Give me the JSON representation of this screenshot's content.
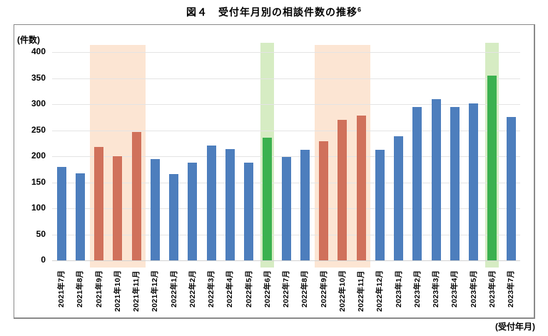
{
  "chart_data": {
    "type": "bar",
    "title": "図４　受付年月別の相談件数の推移",
    "footnote_marker": "6",
    "ylabel": "(件数)",
    "xlabel": "(受付年月)",
    "ylim": [
      0,
      400
    ],
    "ytick_interval": 50,
    "yticks": [
      0,
      50,
      100,
      150,
      200,
      250,
      300,
      350,
      400
    ],
    "grid": true,
    "legend": "none",
    "categories": [
      "2021年7月",
      "2021年8月",
      "2021年9月",
      "2021年10月",
      "2021年11月",
      "2021年12月",
      "2022年1月",
      "2022年2月",
      "2022年3月",
      "2022年4月",
      "2022年5月",
      "2022年6月",
      "2022年7月",
      "2022年8月",
      "2022年9月",
      "2022年10月",
      "2022年11月",
      "2022年12月",
      "2023年1月",
      "2023年2月",
      "2023年3月",
      "2023年4月",
      "2023年5月",
      "2023年6月",
      "2023年7月"
    ],
    "values": [
      179,
      167,
      218,
      200,
      247,
      194,
      166,
      188,
      221,
      214,
      187,
      235,
      199,
      212,
      229,
      270,
      278,
      213,
      239,
      295,
      309,
      294,
      301,
      355,
      276
    ],
    "bar_color_key": [
      "blue",
      "blue",
      "orange",
      "orange",
      "orange",
      "blue",
      "blue",
      "blue",
      "blue",
      "blue",
      "blue",
      "green",
      "blue",
      "blue",
      "orange",
      "orange",
      "orange",
      "blue",
      "blue",
      "blue",
      "blue",
      "blue",
      "blue",
      "green",
      "blue"
    ],
    "highlight_bands": [
      {
        "style": "orange",
        "from_index": 2,
        "to_index": 4
      },
      {
        "style": "green",
        "from_index": 11,
        "to_index": 11
      },
      {
        "style": "orange",
        "from_index": 14,
        "to_index": 16
      },
      {
        "style": "green",
        "from_index": 23,
        "to_index": 23
      }
    ],
    "colors": {
      "bar_blue": "#4d7ebd",
      "bar_orange": "#d0715b",
      "bar_green": "#3bb14f",
      "band_orange": "#fce5d3",
      "band_green": "#d6ecc3",
      "gridline": "#e4e4e4",
      "axis_line": "#d2d2d2",
      "frame_border": "#8a8a8a",
      "text": "#000000"
    }
  }
}
